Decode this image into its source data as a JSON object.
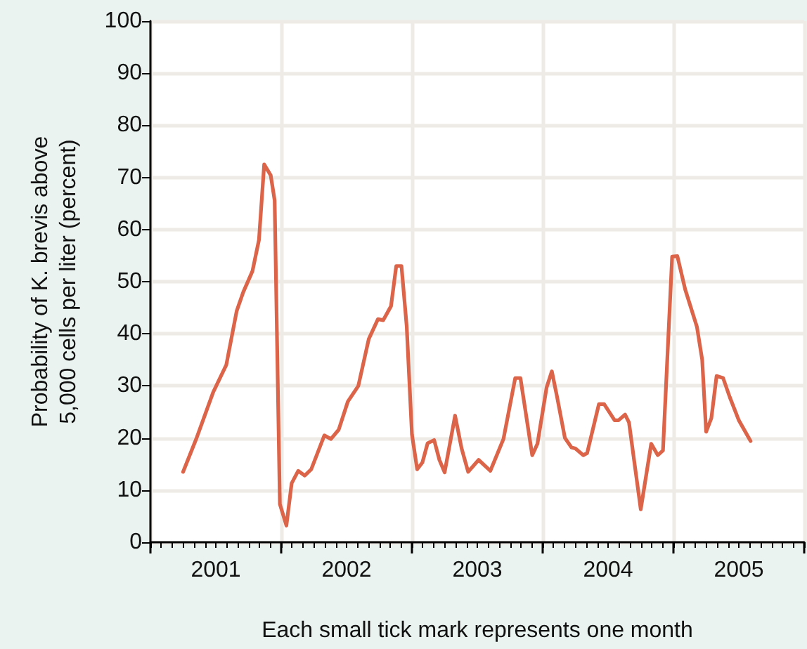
{
  "chart_data": {
    "type": "line",
    "xlabel": "Each small tick mark represents one month",
    "ylabel": "Probability of K. brevis above\n5,000 cells per liter (percent)",
    "x": [
      2001.25,
      2001.35,
      2001.48,
      2001.58,
      2001.66,
      2001.71,
      2001.78,
      2001.83,
      2001.87,
      2001.92,
      2001.95,
      2001.99,
      2002.04,
      2002.08,
      2002.13,
      2002.18,
      2002.23,
      2002.33,
      2002.38,
      2002.44,
      2002.51,
      2002.59,
      2002.67,
      2002.74,
      2002.78,
      2002.84,
      2002.88,
      2002.92,
      2002.96,
      2003.0,
      2003.04,
      2003.08,
      2003.12,
      2003.17,
      2003.21,
      2003.25,
      2003.33,
      2003.38,
      2003.43,
      2003.51,
      2003.6,
      2003.7,
      2003.79,
      2003.83,
      2003.92,
      2003.96,
      2004.03,
      2004.07,
      2004.11,
      2004.17,
      2004.22,
      2004.25,
      2004.31,
      2004.34,
      2004.43,
      2004.47,
      2004.55,
      2004.58,
      2004.63,
      2004.66,
      2004.75,
      2004.83,
      2004.88,
      2004.92,
      2004.99,
      2005.03,
      2005.09,
      2005.18,
      2005.22,
      2005.25,
      2005.29,
      2005.33,
      2005.38,
      2005.43,
      2005.5,
      2005.59
    ],
    "series": [
      {
        "color": "#dc6449",
        "values": [
          13.5,
          19.8,
          28.8,
          34,
          44.4,
          48,
          52,
          58,
          72.5,
          70.4,
          65.6,
          7.3,
          3.2,
          11.3,
          13.7,
          12.8,
          14,
          20.5,
          19.8,
          21.6,
          27,
          30,
          39,
          42.8,
          42.6,
          45.3,
          53,
          53,
          41.4,
          20.7,
          14,
          15.3,
          19,
          19.6,
          15.8,
          13.4,
          24.3,
          18,
          13.5,
          15.8,
          13.7,
          19.8,
          31.5,
          31.5,
          16.7,
          18.9,
          29.7,
          32.8,
          27.9,
          20,
          18.2,
          18,
          16.7,
          17.1,
          26.5,
          26.5,
          23.4,
          23.4,
          24.5,
          23,
          6.3,
          18.9,
          16.7,
          17.6,
          54.8,
          54.9,
          48.5,
          41.3,
          35,
          21.2,
          23.8,
          31.9,
          31.5,
          27.9,
          23.4,
          19.4
        ]
      }
    ],
    "xlim": [
      2001,
      2006
    ],
    "xticks": [
      {
        "value": 2001,
        "label": null
      },
      {
        "value": 2001.5,
        "label": "2001"
      },
      {
        "value": 2002,
        "label": null
      },
      {
        "value": 2002.5,
        "label": "2002"
      },
      {
        "value": 2003,
        "label": null
      },
      {
        "value": 2003.5,
        "label": "2003"
      },
      {
        "value": 2004,
        "label": null
      },
      {
        "value": 2004.5,
        "label": "2004"
      },
      {
        "value": 2005,
        "label": null
      },
      {
        "value": 2005.5,
        "label": "2005"
      },
      {
        "value": 2006,
        "label": null
      }
    ],
    "ylim": [
      0,
      100
    ],
    "yticks": [
      0,
      10,
      20,
      30,
      40,
      50,
      60,
      70,
      80,
      90,
      100
    ],
    "grid": true,
    "marker": "none",
    "line_style": "solid"
  }
}
